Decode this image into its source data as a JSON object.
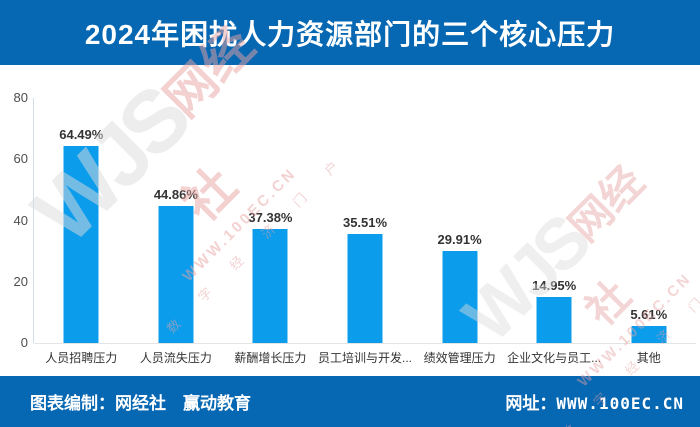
{
  "header": {
    "title": "2024年困扰人力资源部门的三个核心压力",
    "bg_color": "#0667B3",
    "text_color": "#FFFFFF"
  },
  "chart_data": {
    "type": "bar",
    "title": "2024年困扰人力资源部门的三个核心压力",
    "categories": [
      "人员招聘压力",
      "人员流失压力",
      "薪酬增长压力",
      "员工培训与开发...",
      "绩效管理压力",
      "企业文化与员工...",
      "其他"
    ],
    "values": [
      64.49,
      44.86,
      37.38,
      35.51,
      29.91,
      14.95,
      5.61
    ],
    "data_labels": [
      "64.49%",
      "44.86%",
      "37.38%",
      "35.51%",
      "29.91%",
      "14.95%",
      "5.61%"
    ],
    "xlabel": "",
    "ylabel": "",
    "ylim": [
      0,
      80
    ],
    "yticks": [
      0,
      20,
      40,
      60,
      80
    ],
    "bar_color": "#0B9CEC",
    "grid": false,
    "legend": false
  },
  "footer": {
    "left": "图表编制：网经社　赢动教育",
    "right_label": "网址：",
    "right_url": "WWW.100EC.CN",
    "bg_color": "#0667B3"
  },
  "watermark": {
    "logo": "WJS",
    "brand": "网经社",
    "url": "WWW.100EC.CN",
    "chars": "数 字 经 济 门 户",
    "pink": "#E8A4A4"
  }
}
